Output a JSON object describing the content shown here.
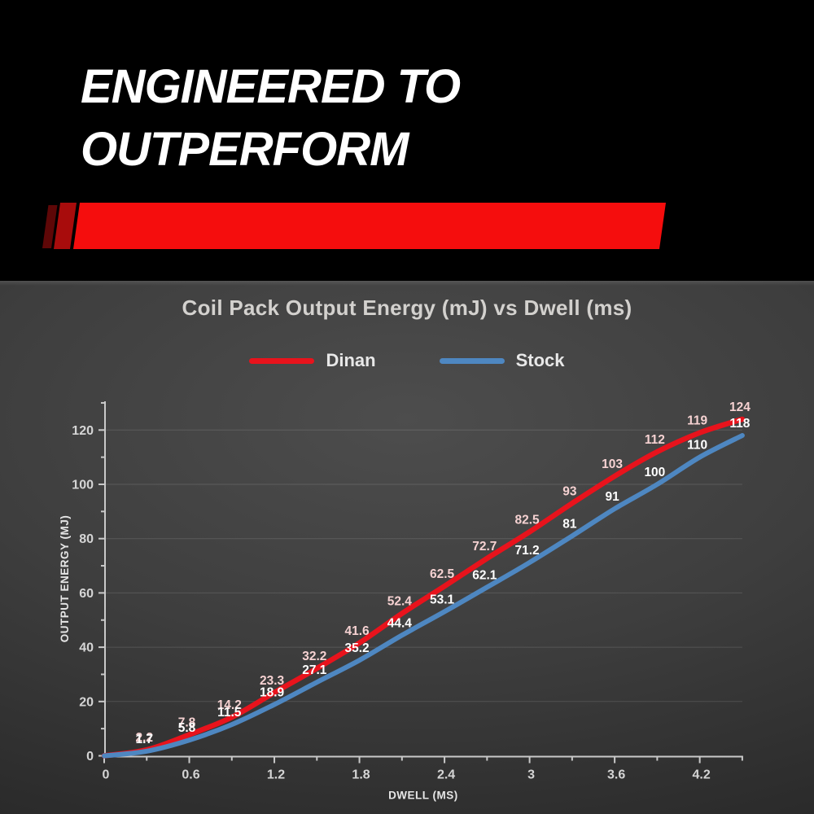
{
  "hero": {
    "headline_line1": "ENGINEERED TO",
    "headline_line2": "OUTPERFORM",
    "banner_colors": {
      "main": "#f50d0d",
      "mid": "#a80c0c",
      "dark": "#5e0707"
    }
  },
  "chart_data": {
    "type": "line",
    "title": "Coil Pack Output Energy (mJ) vs Dwell (ms)",
    "xlabel": "DWELL (MS)",
    "ylabel": "OUTPUT ENERGY (MJ)",
    "x": [
      0,
      0.3,
      0.6,
      0.9,
      1.2,
      1.5,
      1.8,
      2.1,
      2.4,
      2.7,
      3.0,
      3.3,
      3.6,
      3.9,
      4.2,
      4.5
    ],
    "series": [
      {
        "name": "Dinan",
        "color": "#e8131c",
        "label_color": "#f6d2d2",
        "values": [
          0,
          2.2,
          7.8,
          14.2,
          23.3,
          32.2,
          41.6,
          52.4,
          62.5,
          72.7,
          82.5,
          93,
          103,
          112,
          119,
          124
        ],
        "labels": [
          "",
          "2.2",
          "7.8",
          "14.2",
          "23.3",
          "32.2",
          "41.6",
          "52.4",
          "62.5",
          "72.7",
          "82.5",
          "93",
          "103",
          "112",
          "119",
          "124"
        ]
      },
      {
        "name": "Stock",
        "color": "#4e87c1",
        "label_color": "#ffffff",
        "values": [
          0,
          1.7,
          5.8,
          11.5,
          18.9,
          27.1,
          35.2,
          44.4,
          53.1,
          62.1,
          71.2,
          81,
          91,
          100,
          110,
          118
        ],
        "labels": [
          "",
          "1.7",
          "5.8",
          "11.5",
          "18.9",
          "27.1",
          "35.2",
          "44.4",
          "53.1",
          "62.1",
          "71.2",
          "81",
          "91",
          "100",
          "110",
          "118"
        ]
      }
    ],
    "x_tick_labels": [
      "0",
      "0.6",
      "1.2",
      "1.8",
      "2.4",
      "3",
      "3.6",
      "4.2"
    ],
    "x_ticks_major": [
      0,
      0.6,
      1.2,
      1.8,
      2.4,
      3.0,
      3.6,
      4.2
    ],
    "x_ticks_minor": [
      0.3,
      0.9,
      1.5,
      2.1,
      2.7,
      3.3,
      3.9,
      4.5
    ],
    "y_tick_labels": [
      "0",
      "20",
      "40",
      "60",
      "80",
      "100",
      "120"
    ],
    "y_ticks_major": [
      0,
      20,
      40,
      60,
      80,
      100,
      120
    ],
    "y_ticks_minor": [
      10,
      30,
      50,
      70,
      90,
      110,
      130
    ],
    "xlim": [
      0,
      4.5
    ],
    "ylim": [
      0,
      130
    ],
    "grid": "horizontal-only",
    "legend_position": "top",
    "axis_color": "#c9c9c9",
    "tick_label_color": "#d5d5d5",
    "grid_color": "rgba(255,255,255,0.13)"
  }
}
